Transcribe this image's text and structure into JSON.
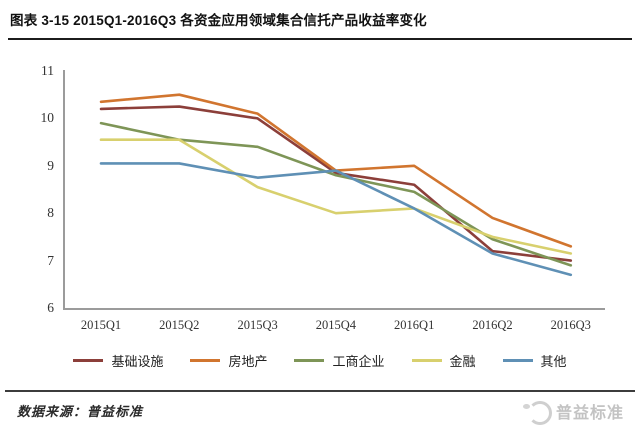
{
  "title": "图表 3-15 2015Q1-2016Q3 各资金应用领域集合信托产品收益率变化",
  "chart_data": {
    "type": "line",
    "title": "图表 3-15 2015Q1-2016Q3 各资金应用领域集合信托产品收益率变化",
    "categories": [
      "2015Q1",
      "2015Q2",
      "2015Q3",
      "2015Q4",
      "2016Q1",
      "2016Q2",
      "2016Q3"
    ],
    "series": [
      {
        "name": "基础设施",
        "color": "#8c3f3a",
        "values": [
          10.2,
          10.25,
          10.0,
          8.85,
          8.6,
          7.2,
          7.0
        ]
      },
      {
        "name": "房地产",
        "color": "#d1752f",
        "values": [
          10.35,
          10.5,
          10.1,
          8.9,
          9.0,
          7.9,
          7.3
        ]
      },
      {
        "name": "工商企业",
        "color": "#7e9557",
        "values": [
          9.9,
          9.55,
          9.4,
          8.8,
          8.45,
          7.45,
          6.9
        ]
      },
      {
        "name": "金融",
        "color": "#d8d06e",
        "values": [
          9.55,
          9.55,
          8.55,
          8.0,
          8.1,
          7.5,
          7.15
        ]
      },
      {
        "name": "其他",
        "color": "#5f90b5",
        "values": [
          9.05,
          9.05,
          8.75,
          8.9,
          8.1,
          7.15,
          6.7
        ]
      }
    ],
    "ylim": [
      6,
      11
    ],
    "yticks": [
      11,
      10,
      9,
      8,
      7,
      6
    ],
    "xlabel": "",
    "ylabel": "",
    "grid": false,
    "legend_position": "bottom"
  },
  "footer": {
    "source": "数据来源：普益标准",
    "logo_text": "普益标准"
  }
}
